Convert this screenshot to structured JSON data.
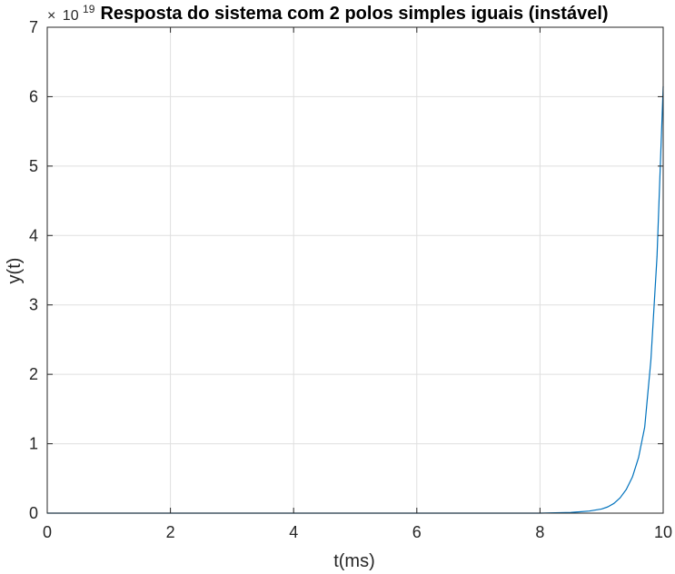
{
  "chart_data": {
    "type": "line",
    "title": "Resposta do sistema com 2 polos simples iguais (instável)",
    "xlabel": "t(ms)",
    "ylabel": "y(t)",
    "xlim": [
      0,
      10
    ],
    "ylim": [
      0,
      7
    ],
    "x_ticks": [
      "0",
      "2",
      "4",
      "6",
      "8",
      "10"
    ],
    "y_ticks": [
      "0",
      "1",
      "2",
      "3",
      "4",
      "5",
      "6",
      "7"
    ],
    "y_exponent_prefix": "×",
    "y_exponent_base": "10",
    "y_exponent_power": "19",
    "grid": true,
    "series": [
      {
        "color": "#0072BD",
        "x": [
          0,
          1,
          2,
          3,
          4,
          5,
          6,
          7,
          8,
          8.5,
          8.8,
          9.0,
          9.1,
          9.2,
          9.3,
          9.4,
          9.5,
          9.6,
          9.7,
          9.8,
          9.9,
          10.0
        ],
        "y": [
          0,
          0,
          0,
          0,
          0,
          0,
          0,
          0,
          0.0,
          0.01,
          0.03,
          0.06,
          0.09,
          0.14,
          0.22,
          0.34,
          0.52,
          0.8,
          1.24,
          2.2,
          3.7,
          6.15
        ]
      }
    ]
  }
}
